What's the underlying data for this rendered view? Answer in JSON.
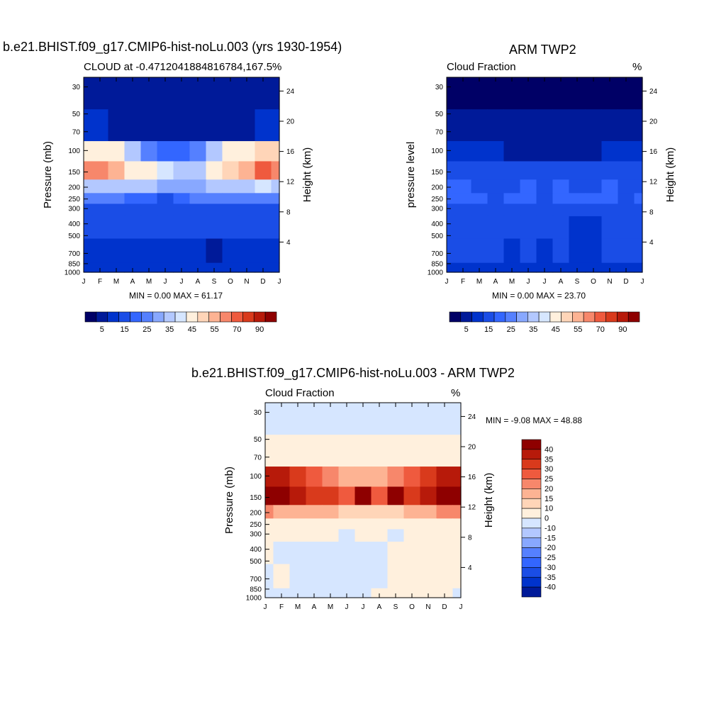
{
  "panels": [
    {
      "main_title": "b.e21.BHIST.f09_g17.CMIP6-hist-noLu.003 (yrs 1930-1954)",
      "left_subtitle": "CLOUD at -0.4712041884816784,167.5",
      "right_subtitle": "%",
      "ylabel_left": "Pressure (mb)",
      "ylabel_right": "Height (km)",
      "minmax": "MIN =   0.00 MAX =  61.17"
    },
    {
      "main_title": "ARM TWP2",
      "left_subtitle": "Cloud Fraction",
      "right_subtitle": "%",
      "ylabel_left": "pressure level",
      "ylabel_right": "Height (km)",
      "minmax": "MIN =   0.00 MAX =  23.70"
    },
    {
      "main_title": "b.e21.BHIST.f09_g17.CMIP6-hist-noLu.003 - ARM TWP2",
      "left_subtitle": "Cloud Fraction",
      "right_subtitle": "%",
      "ylabel_left": "Pressure (mb)",
      "ylabel_right": "Height (km)",
      "minmax": "MIN =  -9.08 MAX =  48.88"
    }
  ],
  "chart_data": [
    {
      "type": "heatmap",
      "title": "CLOUD at -0.4712041884816784,167.5",
      "xlabel": "",
      "ylabel": "Pressure (mb)",
      "ylabel_right": "Height (km)",
      "x_ticks": [
        "J",
        "F",
        "M",
        "A",
        "M",
        "J",
        "J",
        "A",
        "S",
        "O",
        "N",
        "D",
        "J"
      ],
      "y_ticks_pressure": [
        30,
        50,
        70,
        100,
        150,
        200,
        250,
        300,
        400,
        500,
        700,
        850,
        1000
      ],
      "y_ticks_height": [
        24,
        20,
        16,
        12,
        8,
        4
      ],
      "min": 0.0,
      "max": 61.17,
      "colorbar": {
        "labels": [
          "5",
          "15",
          "25",
          "35",
          "45",
          "55",
          "70",
          "90"
        ],
        "colors": [
          "#000066",
          "#001a99",
          "#0033cc",
          "#1a4de6",
          "#3366ff",
          "#5580ff",
          "#88a8ff",
          "#b3c8ff",
          "#d6e6ff",
          "#fff0dd",
          "#ffd5b8",
          "#fdb393",
          "#f7876b",
          "#ef5a3e",
          "#d93a1c",
          "#b71a0a",
          "#8e0000"
        ]
      },
      "grid_pressure": [
        30,
        70,
        100,
        150,
        200,
        250,
        300,
        400,
        700,
        1000
      ],
      "grid_values": [
        [
          2,
          2,
          2,
          2,
          2,
          2,
          2,
          2,
          2,
          2,
          2,
          2,
          2
        ],
        [
          9,
          6,
          4,
          3,
          3,
          3,
          3,
          3,
          3,
          3,
          3,
          5,
          9
        ],
        [
          44,
          44,
          40,
          32,
          24,
          19,
          17,
          22,
          30,
          40,
          44,
          48,
          46
        ],
        [
          55,
          58,
          50,
          44,
          40,
          36,
          30,
          34,
          40,
          46,
          54,
          60,
          58
        ],
        [
          34,
          34,
          32,
          30,
          30,
          28,
          26,
          28,
          30,
          32,
          34,
          36,
          34
        ],
        [
          24,
          22,
          20,
          18,
          16,
          14,
          16,
          20,
          22,
          24,
          24,
          24,
          24
        ],
        [
          12,
          14,
          14,
          12,
          10,
          10,
          10,
          12,
          12,
          14,
          14,
          14,
          12
        ],
        [
          14,
          12,
          12,
          12,
          12,
          12,
          12,
          12,
          12,
          12,
          12,
          12,
          14
        ],
        [
          8,
          8,
          9,
          8,
          8,
          8,
          7,
          5,
          3,
          5,
          8,
          9,
          8
        ],
        [
          5,
          6,
          6,
          6,
          6,
          6,
          6,
          6,
          6,
          6,
          6,
          6,
          5
        ]
      ]
    },
    {
      "type": "heatmap",
      "title": "Cloud Fraction",
      "xlabel": "",
      "ylabel": "pressure level",
      "ylabel_right": "Height (km)",
      "x_ticks": [
        "J",
        "F",
        "M",
        "A",
        "M",
        "J",
        "J",
        "A",
        "S",
        "O",
        "N",
        "D",
        "J"
      ],
      "y_ticks_pressure": [
        30,
        50,
        70,
        100,
        150,
        200,
        250,
        300,
        400,
        500,
        700,
        850,
        1000
      ],
      "y_ticks_height": [
        24,
        20,
        16,
        12,
        8,
        4
      ],
      "min": 0.0,
      "max": 23.7,
      "colorbar": {
        "labels": [
          "5",
          "15",
          "25",
          "35",
          "45",
          "55",
          "70",
          "90"
        ],
        "colors": [
          "#000066",
          "#001a99",
          "#0033cc",
          "#1a4de6",
          "#3366ff",
          "#5580ff",
          "#88a8ff",
          "#b3c8ff",
          "#d6e6ff",
          "#fff0dd",
          "#ffd5b8",
          "#fdb393",
          "#f7876b",
          "#ef5a3e",
          "#d93a1c",
          "#b71a0a",
          "#8e0000"
        ]
      },
      "grid_pressure": [
        30,
        70,
        100,
        150,
        200,
        250,
        300,
        400,
        700,
        1000
      ],
      "grid_values": [
        [
          1,
          1,
          1,
          1,
          1,
          1,
          1,
          1,
          1,
          1,
          1,
          1,
          1
        ],
        [
          2,
          2,
          2,
          2,
          2,
          2,
          2,
          2,
          2,
          2,
          2,
          2,
          2
        ],
        [
          8,
          7,
          6,
          5,
          4,
          4,
          4,
          4,
          4,
          4,
          5,
          7,
          9
        ],
        [
          12,
          12,
          12,
          10,
          12,
          12,
          11,
          11,
          10,
          12,
          12,
          12,
          12
        ],
        [
          15,
          16,
          14,
          13,
          14,
          15,
          14,
          15,
          13,
          14,
          15,
          14,
          14
        ],
        [
          18,
          17,
          15,
          14,
          16,
          16,
          14,
          15,
          16,
          15,
          15,
          14,
          16
        ],
        [
          14,
          14,
          14,
          14,
          14,
          14,
          14,
          14,
          12,
          14,
          14,
          14,
          14
        ],
        [
          13,
          12,
          12,
          12,
          12,
          12,
          11,
          12,
          7,
          7,
          12,
          12,
          13
        ],
        [
          11,
          11,
          10,
          10,
          7,
          10,
          7,
          10,
          6,
          7,
          10,
          10,
          11
        ],
        [
          9,
          9,
          9,
          9,
          9,
          9,
          9,
          9,
          9,
          9,
          9,
          9,
          9
        ]
      ]
    },
    {
      "type": "heatmap",
      "title": "Cloud Fraction",
      "xlabel": "",
      "ylabel": "Pressure (mb)",
      "ylabel_right": "Height (km)",
      "x_ticks": [
        "J",
        "F",
        "M",
        "A",
        "M",
        "J",
        "J",
        "A",
        "S",
        "O",
        "N",
        "D",
        "J"
      ],
      "y_ticks_pressure": [
        30,
        50,
        70,
        100,
        150,
        200,
        250,
        300,
        400,
        500,
        700,
        850,
        1000
      ],
      "y_ticks_height": [
        24,
        20,
        16,
        12,
        8,
        4
      ],
      "min": -9.08,
      "max": 48.88,
      "colorbar": {
        "labels": [
          "40",
          "35",
          "30",
          "25",
          "20",
          "15",
          "10",
          "0",
          "-10",
          "-15",
          "-20",
          "-25",
          "-30",
          "-35",
          "-40"
        ],
        "colors": [
          "#8e0000",
          "#b71a0a",
          "#d93a1c",
          "#ef5a3e",
          "#f7876b",
          "#fdb393",
          "#ffd5b8",
          "#fff0dd",
          "#d6e6ff",
          "#b3c8ff",
          "#88a8ff",
          "#5580ff",
          "#3366ff",
          "#1a4de6",
          "#0033cc",
          "#001a99"
        ]
      },
      "grid_pressure": [
        30,
        70,
        100,
        150,
        200,
        250,
        300,
        400,
        700,
        1000
      ],
      "grid_values": [
        [
          -3,
          -3,
          -3,
          -3,
          -3,
          -3,
          -3,
          -3,
          -3,
          -3,
          -3,
          -3,
          -3
        ],
        [
          3,
          3,
          3,
          3,
          3,
          3,
          3,
          3,
          3,
          3,
          3,
          3,
          3
        ],
        [
          36,
          36,
          34,
          28,
          22,
          18,
          16,
          18,
          22,
          28,
          32,
          36,
          38
        ],
        [
          44,
          44,
          38,
          34,
          32,
          26,
          42,
          28,
          42,
          34,
          38,
          46,
          46
        ],
        [
          20,
          18,
          18,
          18,
          18,
          14,
          14,
          14,
          14,
          16,
          18,
          22,
          20
        ],
        [
          8,
          6,
          6,
          6,
          4,
          4,
          4,
          4,
          4,
          6,
          8,
          8,
          8
        ],
        [
          2,
          1,
          1,
          1,
          1,
          -1,
          1,
          1,
          -1,
          1,
          2,
          2,
          2
        ],
        [
          2,
          -2,
          -2,
          -2,
          -2,
          -2,
          -2,
          -2,
          2,
          2,
          2,
          2,
          2
        ],
        [
          -2,
          2,
          -2,
          -2,
          -2,
          -2,
          -2,
          -2,
          2,
          2,
          2,
          2,
          2
        ],
        [
          -2,
          -2,
          -2,
          -2,
          -2,
          -2,
          -2,
          2,
          2,
          2,
          2,
          2,
          -2
        ]
      ]
    }
  ]
}
